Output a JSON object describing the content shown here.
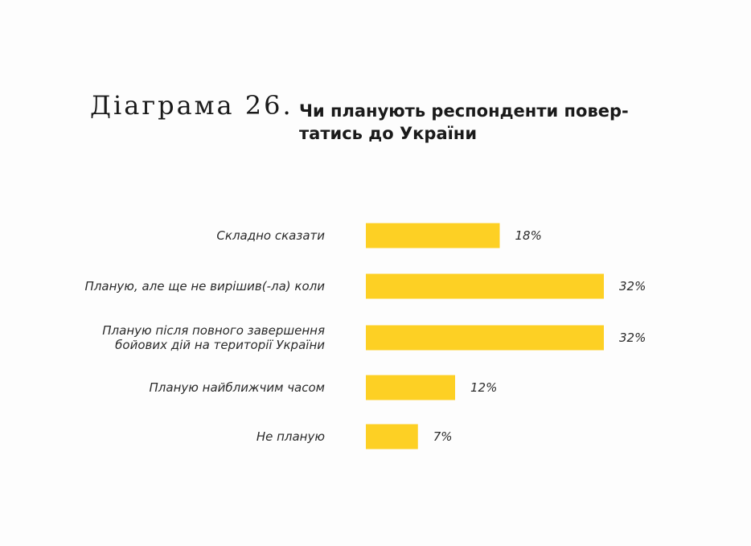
{
  "title": {
    "number": "Діаграма 26.",
    "line1": "Чи планують респонденти повер-",
    "line2": "татись до України"
  },
  "colors": {
    "bar": "#fdd024"
  },
  "chart_data": {
    "type": "bar",
    "orientation": "horizontal",
    "categories": [
      [
        "Складно сказати"
      ],
      [
        "Планую, але ще не вирішив(-ла) коли"
      ],
      [
        "Планую після повного завершення",
        "бойових дій на території України"
      ],
      [
        "Планую найближчим часом"
      ],
      [
        "Не планую"
      ]
    ],
    "values": [
      18,
      32,
      32,
      12,
      7
    ],
    "value_labels": [
      "18%",
      "32%",
      "32%",
      "12%",
      "7%"
    ],
    "unit": "%",
    "grid": false,
    "legend": "none"
  }
}
